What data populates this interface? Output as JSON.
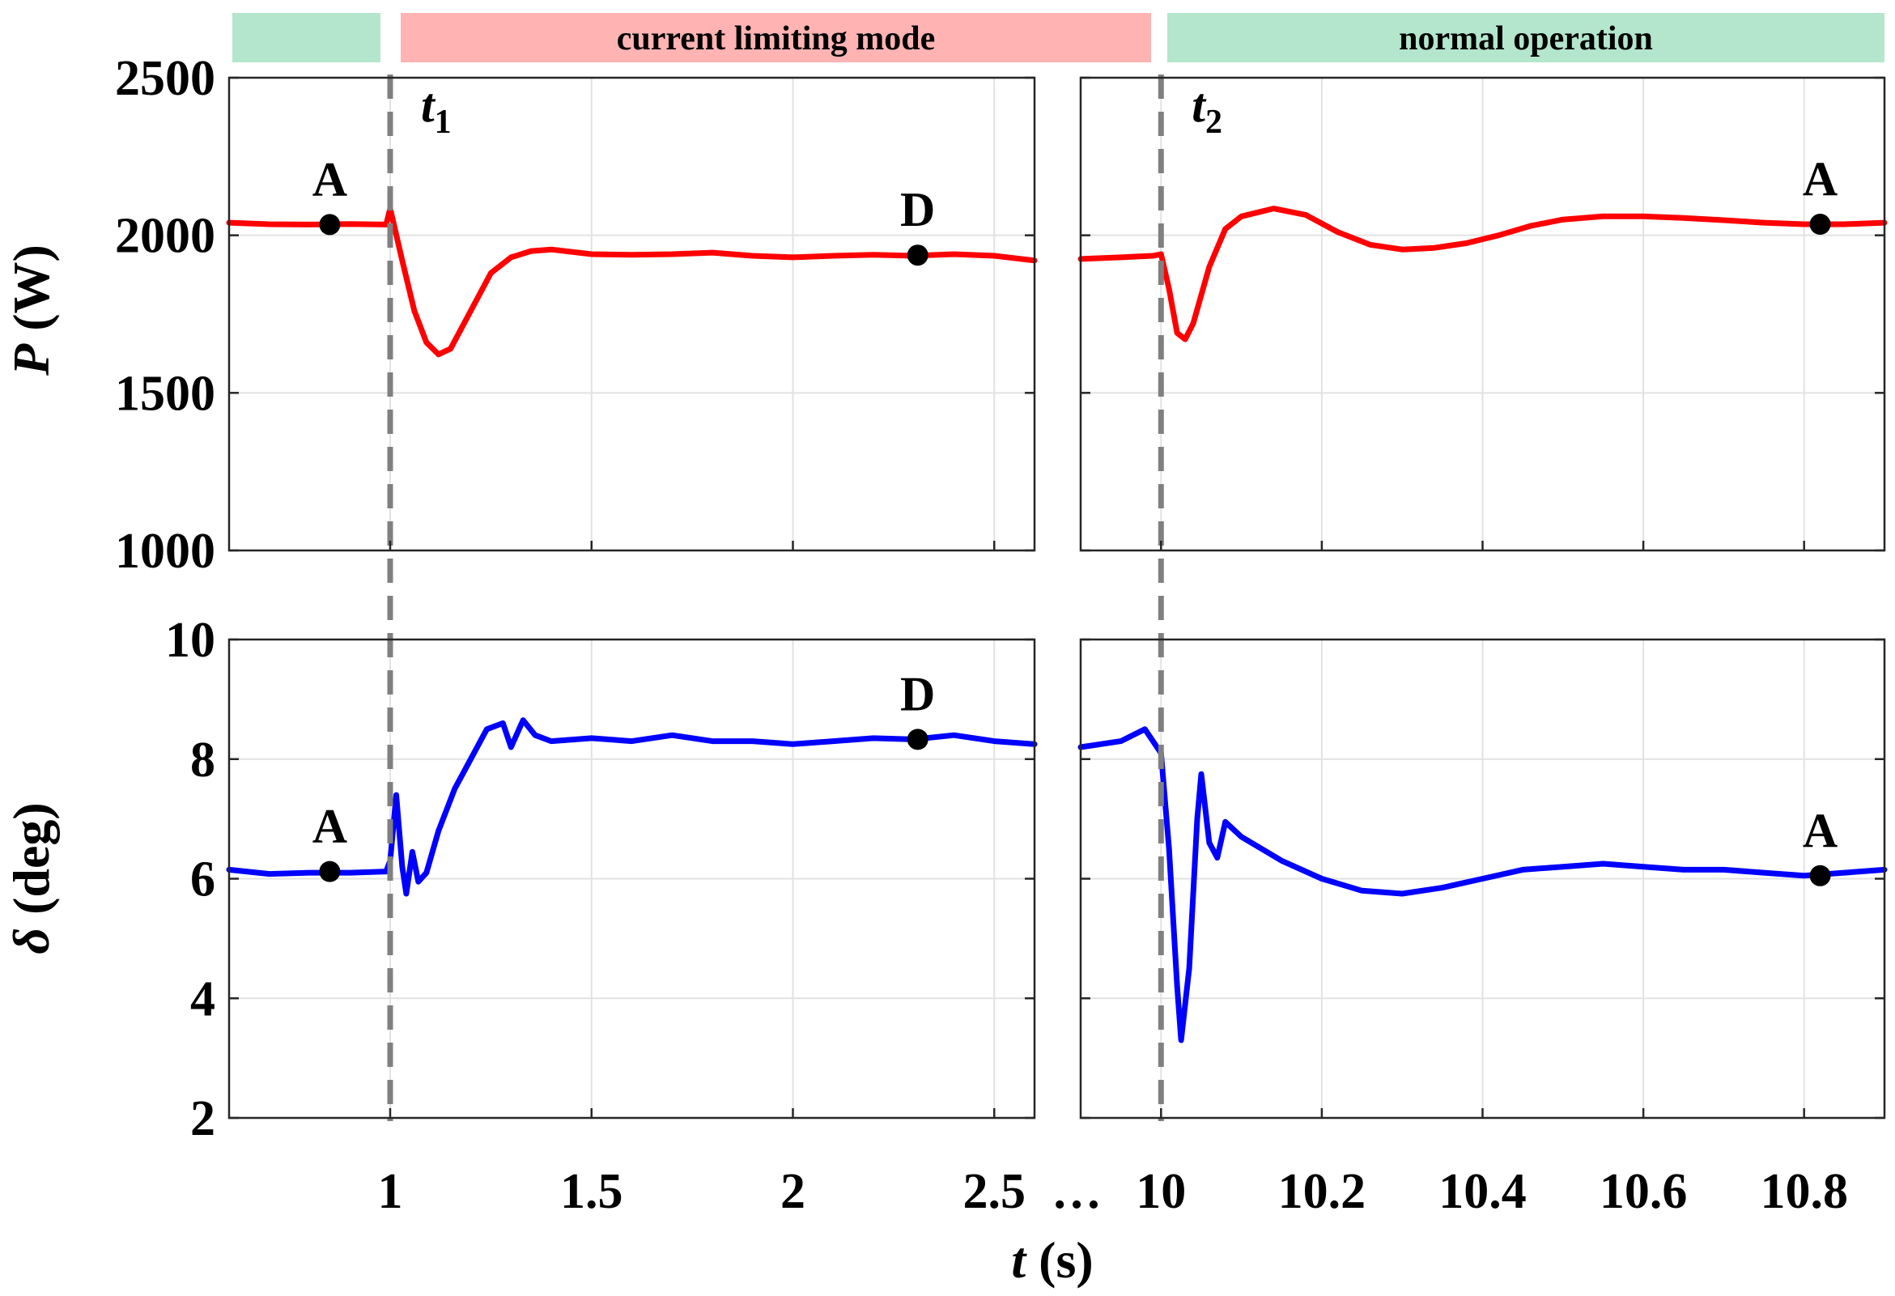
{
  "chart_data": {
    "type": "line",
    "banners": [
      {
        "label": "",
        "color": "#b3e6cc"
      },
      {
        "label": "current limiting mode",
        "color": "#ffb3b3"
      },
      {
        "label": "normal operation",
        "color": "#b3e6cc"
      }
    ],
    "time_markers": [
      {
        "name": "t",
        "sub": "1",
        "x": 1.0
      },
      {
        "name": "t",
        "sub": "2",
        "x": 10.0
      }
    ],
    "x_segments": [
      {
        "xlim": [
          0.6,
          2.6
        ],
        "xticks": [
          1,
          1.5,
          2,
          2.5
        ],
        "xtick_labels": [
          "1",
          "1.5",
          "2",
          "2.5"
        ]
      },
      {
        "xlim": [
          9.9,
          10.9
        ],
        "xticks": [
          10,
          10.2,
          10.4,
          10.6,
          10.8
        ],
        "xtick_labels": [
          "10",
          "10.2",
          "10.4",
          "10.6",
          "10.8"
        ]
      }
    ],
    "axis_break_label": "…",
    "xlabel_var": "t",
    "xlabel_unit": " (s)",
    "grid": true,
    "panels": [
      {
        "ylabel_var": "P",
        "ylabel_unit": " (W)",
        "ylim": [
          1000,
          2500
        ],
        "yticks": [
          1000,
          1500,
          2000,
          2500
        ],
        "ytick_labels": [
          "1000",
          "1500",
          "2000",
          "2500"
        ],
        "series": [
          {
            "color": "#ff0000",
            "points_left": [
              [
                0.6,
                2040
              ],
              [
                0.7,
                2035
              ],
              [
                0.8,
                2034
              ],
              [
                0.9,
                2036
              ],
              [
                0.99,
                2034
              ],
              [
                1.0,
                2085
              ],
              [
                1.03,
                1920
              ],
              [
                1.06,
                1760
              ],
              [
                1.09,
                1660
              ],
              [
                1.12,
                1622
              ],
              [
                1.15,
                1640
              ],
              [
                1.2,
                1760
              ],
              [
                1.25,
                1880
              ],
              [
                1.3,
                1930
              ],
              [
                1.35,
                1950
              ],
              [
                1.4,
                1955
              ],
              [
                1.5,
                1940
              ],
              [
                1.6,
                1938
              ],
              [
                1.7,
                1940
              ],
              [
                1.8,
                1945
              ],
              [
                1.9,
                1935
              ],
              [
                2.0,
                1930
              ],
              [
                2.1,
                1935
              ],
              [
                2.2,
                1938
              ],
              [
                2.3,
                1935
              ],
              [
                2.4,
                1940
              ],
              [
                2.5,
                1935
              ],
              [
                2.6,
                1920
              ]
            ],
            "points_right": [
              [
                9.9,
                1925
              ],
              [
                9.95,
                1930
              ],
              [
                9.99,
                1935
              ],
              [
                10.0,
                1940
              ],
              [
                10.01,
                1830
              ],
              [
                10.02,
                1690
              ],
              [
                10.03,
                1670
              ],
              [
                10.04,
                1720
              ],
              [
                10.06,
                1900
              ],
              [
                10.08,
                2020
              ],
              [
                10.1,
                2060
              ],
              [
                10.14,
                2085
              ],
              [
                10.18,
                2065
              ],
              [
                10.22,
                2010
              ],
              [
                10.26,
                1970
              ],
              [
                10.3,
                1955
              ],
              [
                10.34,
                1960
              ],
              [
                10.38,
                1975
              ],
              [
                10.42,
                2000
              ],
              [
                10.46,
                2030
              ],
              [
                10.5,
                2050
              ],
              [
                10.55,
                2060
              ],
              [
                10.6,
                2060
              ],
              [
                10.65,
                2055
              ],
              [
                10.7,
                2048
              ],
              [
                10.75,
                2040
              ],
              [
                10.8,
                2035
              ],
              [
                10.85,
                2035
              ],
              [
                10.9,
                2040
              ]
            ]
          }
        ],
        "annotations": [
          {
            "label": "A",
            "x": 0.85,
            "y": 2034
          },
          {
            "label": "D",
            "x": 2.31,
            "y": 1937
          },
          {
            "label": "A",
            "x": 10.82,
            "y": 2035
          }
        ]
      },
      {
        "ylabel_var": "δ",
        "ylabel_unit": " (deg)",
        "ylim": [
          2,
          10
        ],
        "yticks": [
          2,
          4,
          6,
          8,
          10
        ],
        "ytick_labels": [
          "2",
          "4",
          "6",
          "8",
          "10"
        ],
        "series": [
          {
            "color": "#0000ff",
            "points_left": [
              [
                0.6,
                6.15
              ],
              [
                0.7,
                6.08
              ],
              [
                0.8,
                6.1
              ],
              [
                0.9,
                6.1
              ],
              [
                0.99,
                6.12
              ],
              [
                1.0,
                6.3
              ],
              [
                1.015,
                7.4
              ],
              [
                1.03,
                6.2
              ],
              [
                1.04,
                5.75
              ],
              [
                1.055,
                6.45
              ],
              [
                1.07,
                5.95
              ],
              [
                1.09,
                6.1
              ],
              [
                1.12,
                6.8
              ],
              [
                1.16,
                7.5
              ],
              [
                1.2,
                8.0
              ],
              [
                1.24,
                8.5
              ],
              [
                1.28,
                8.6
              ],
              [
                1.3,
                8.2
              ],
              [
                1.33,
                8.65
              ],
              [
                1.36,
                8.4
              ],
              [
                1.4,
                8.3
              ],
              [
                1.5,
                8.35
              ],
              [
                1.6,
                8.3
              ],
              [
                1.7,
                8.4
              ],
              [
                1.8,
                8.3
              ],
              [
                1.9,
                8.3
              ],
              [
                2.0,
                8.25
              ],
              [
                2.1,
                8.3
              ],
              [
                2.2,
                8.35
              ],
              [
                2.3,
                8.33
              ],
              [
                2.4,
                8.4
              ],
              [
                2.5,
                8.3
              ],
              [
                2.6,
                8.25
              ]
            ],
            "points_right": [
              [
                9.9,
                8.2
              ],
              [
                9.95,
                8.3
              ],
              [
                9.98,
                8.5
              ],
              [
                10.0,
                8.1
              ],
              [
                10.01,
                6.5
              ],
              [
                10.02,
                4.2
              ],
              [
                10.025,
                3.3
              ],
              [
                10.035,
                4.5
              ],
              [
                10.045,
                7.0
              ],
              [
                10.05,
                7.75
              ],
              [
                10.06,
                6.6
              ],
              [
                10.07,
                6.35
              ],
              [
                10.08,
                6.95
              ],
              [
                10.1,
                6.7
              ],
              [
                10.15,
                6.3
              ],
              [
                10.2,
                6.0
              ],
              [
                10.25,
                5.8
              ],
              [
                10.3,
                5.75
              ],
              [
                10.35,
                5.85
              ],
              [
                10.4,
                6.0
              ],
              [
                10.45,
                6.15
              ],
              [
                10.5,
                6.2
              ],
              [
                10.55,
                6.25
              ],
              [
                10.6,
                6.2
              ],
              [
                10.65,
                6.15
              ],
              [
                10.7,
                6.15
              ],
              [
                10.75,
                6.1
              ],
              [
                10.8,
                6.05
              ],
              [
                10.85,
                6.1
              ],
              [
                10.9,
                6.15
              ]
            ]
          }
        ],
        "annotations": [
          {
            "label": "A",
            "x": 0.85,
            "y": 6.12
          },
          {
            "label": "D",
            "x": 2.31,
            "y": 8.33
          },
          {
            "label": "A",
            "x": 10.82,
            "y": 6.05
          }
        ]
      }
    ]
  }
}
